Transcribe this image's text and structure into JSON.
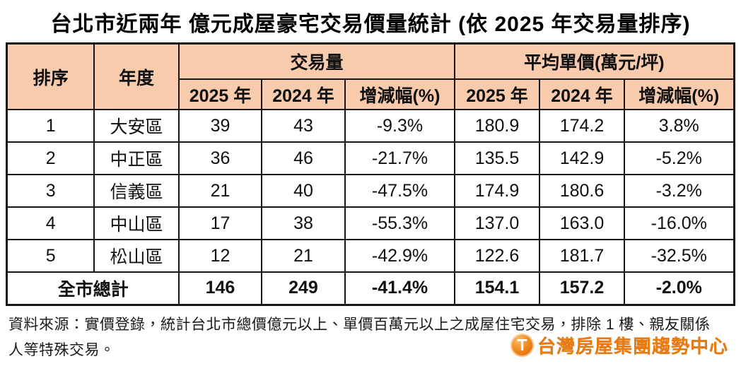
{
  "title": "台北市近兩年 億元成屋豪宅交易價量統計 (依 2025 年交易量排序)",
  "table": {
    "header": {
      "rank": "排序",
      "year": "年度",
      "volume_group": "交易量",
      "price_group": "平均單價(萬元/坪)",
      "y2025": "2025 年",
      "y2024": "2024 年",
      "change": "增減幅(%)"
    },
    "rows": [
      {
        "rank": "1",
        "district": "大安區",
        "vol_2025": "39",
        "vol_2024": "43",
        "vol_change": "-9.3%",
        "price_2025": "180.9",
        "price_2024": "174.2",
        "price_change": "3.8%"
      },
      {
        "rank": "2",
        "district": "中正區",
        "vol_2025": "36",
        "vol_2024": "46",
        "vol_change": "-21.7%",
        "price_2025": "135.5",
        "price_2024": "142.9",
        "price_change": "-5.2%"
      },
      {
        "rank": "3",
        "district": "信義區",
        "vol_2025": "21",
        "vol_2024": "40",
        "vol_change": "-47.5%",
        "price_2025": "174.9",
        "price_2024": "180.6",
        "price_change": "-3.2%"
      },
      {
        "rank": "4",
        "district": "中山區",
        "vol_2025": "17",
        "vol_2024": "38",
        "vol_change": "-55.3%",
        "price_2025": "137.0",
        "price_2024": "163.0",
        "price_change": "-16.0%"
      },
      {
        "rank": "5",
        "district": "松山區",
        "vol_2025": "12",
        "vol_2024": "21",
        "vol_change": "-42.9%",
        "price_2025": "122.6",
        "price_2024": "181.7",
        "price_change": "-32.5%"
      }
    ],
    "total": {
      "label": "全市總計",
      "vol_2025": "146",
      "vol_2024": "249",
      "vol_change": "-41.4%",
      "price_2025": "154.1",
      "price_2024": "157.2",
      "price_change": "-2.0%"
    }
  },
  "footnote": "資料來源：實價登錄，統計台北市總價億元以上、單價百萬元以上之成屋住宅交易，排除 1 樓、親友關係人等特殊交易。",
  "logo": {
    "icon": "T",
    "text": "台灣房屋集團趨勢中心"
  },
  "colors": {
    "header_bg": "#F8CBAD",
    "border": "#161616",
    "logo_orange": "#E87A10"
  },
  "chart_data": {
    "type": "table",
    "title": "台北市近兩年 億元成屋豪宅交易價量統計 (依 2025 年交易量排序)",
    "column_groups": [
      "交易量",
      "平均單價(萬元/坪)"
    ],
    "columns": [
      "排序",
      "年度",
      "交易量 2025 年",
      "交易量 2024 年",
      "交易量 增減幅(%)",
      "平均單價 2025 年",
      "平均單價 2024 年",
      "平均單價 增減幅(%)"
    ],
    "rows": [
      [
        "1",
        "大安區",
        39,
        43,
        "-9.3%",
        180.9,
        174.2,
        "3.8%"
      ],
      [
        "2",
        "中正區",
        36,
        46,
        "-21.7%",
        135.5,
        142.9,
        "-5.2%"
      ],
      [
        "3",
        "信義區",
        21,
        40,
        "-47.5%",
        174.9,
        180.6,
        "-3.2%"
      ],
      [
        "4",
        "中山區",
        17,
        38,
        "-55.3%",
        137.0,
        163.0,
        "-16.0%"
      ],
      [
        "5",
        "松山區",
        12,
        21,
        "-42.9%",
        122.6,
        181.7,
        "-32.5%"
      ]
    ],
    "total_row": [
      "全市總計",
      146,
      249,
      "-41.4%",
      154.1,
      157.2,
      "-2.0%"
    ],
    "source_note": "資料來源：實價登錄，統計台北市總價億元以上、單價百萬元以上之成屋住宅交易，排除 1 樓、親友關係人等特殊交易。"
  }
}
